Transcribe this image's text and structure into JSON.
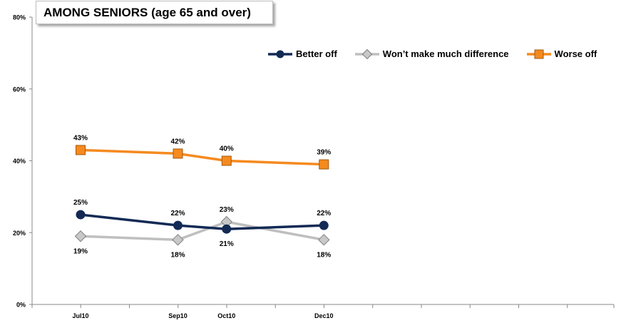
{
  "chart_data": {
    "type": "line",
    "title": "AMONG SENIORS (age 65 and over)",
    "categories": [
      "Jul10",
      "Sep10",
      "Oct10",
      "Dec10"
    ],
    "x_positions_months": [
      7,
      9,
      10,
      12
    ],
    "ylim": [
      0,
      80
    ],
    "yticks": [
      "0%",
      "20%",
      "40%",
      "60%",
      "80%"
    ],
    "ytick_values": [
      0,
      20,
      40,
      60,
      80
    ],
    "grid": false,
    "legend_position": "top-right",
    "series": [
      {
        "name": "Better off",
        "values": [
          25,
          22,
          21,
          22
        ],
        "labels": [
          "25%",
          "22%",
          "21%",
          "22%"
        ],
        "label_side": [
          "above",
          "above",
          "below",
          "above"
        ],
        "color": "#132a55",
        "marker": "circle"
      },
      {
        "name": "Won’t make much difference",
        "values": [
          19,
          18,
          23,
          18
        ],
        "labels": [
          "19%",
          "18%",
          "23%",
          "18%"
        ],
        "label_side": [
          "below",
          "below",
          "above",
          "below"
        ],
        "color": "#bfbfbf",
        "marker": "diamond"
      },
      {
        "name": "Worse off",
        "values": [
          43,
          42,
          40,
          39
        ],
        "labels": [
          "43%",
          "42%",
          "40%",
          "39%"
        ],
        "label_side": [
          "above",
          "above",
          "above",
          "above"
        ],
        "color": "#f58a1f",
        "marker": "square"
      }
    ]
  }
}
